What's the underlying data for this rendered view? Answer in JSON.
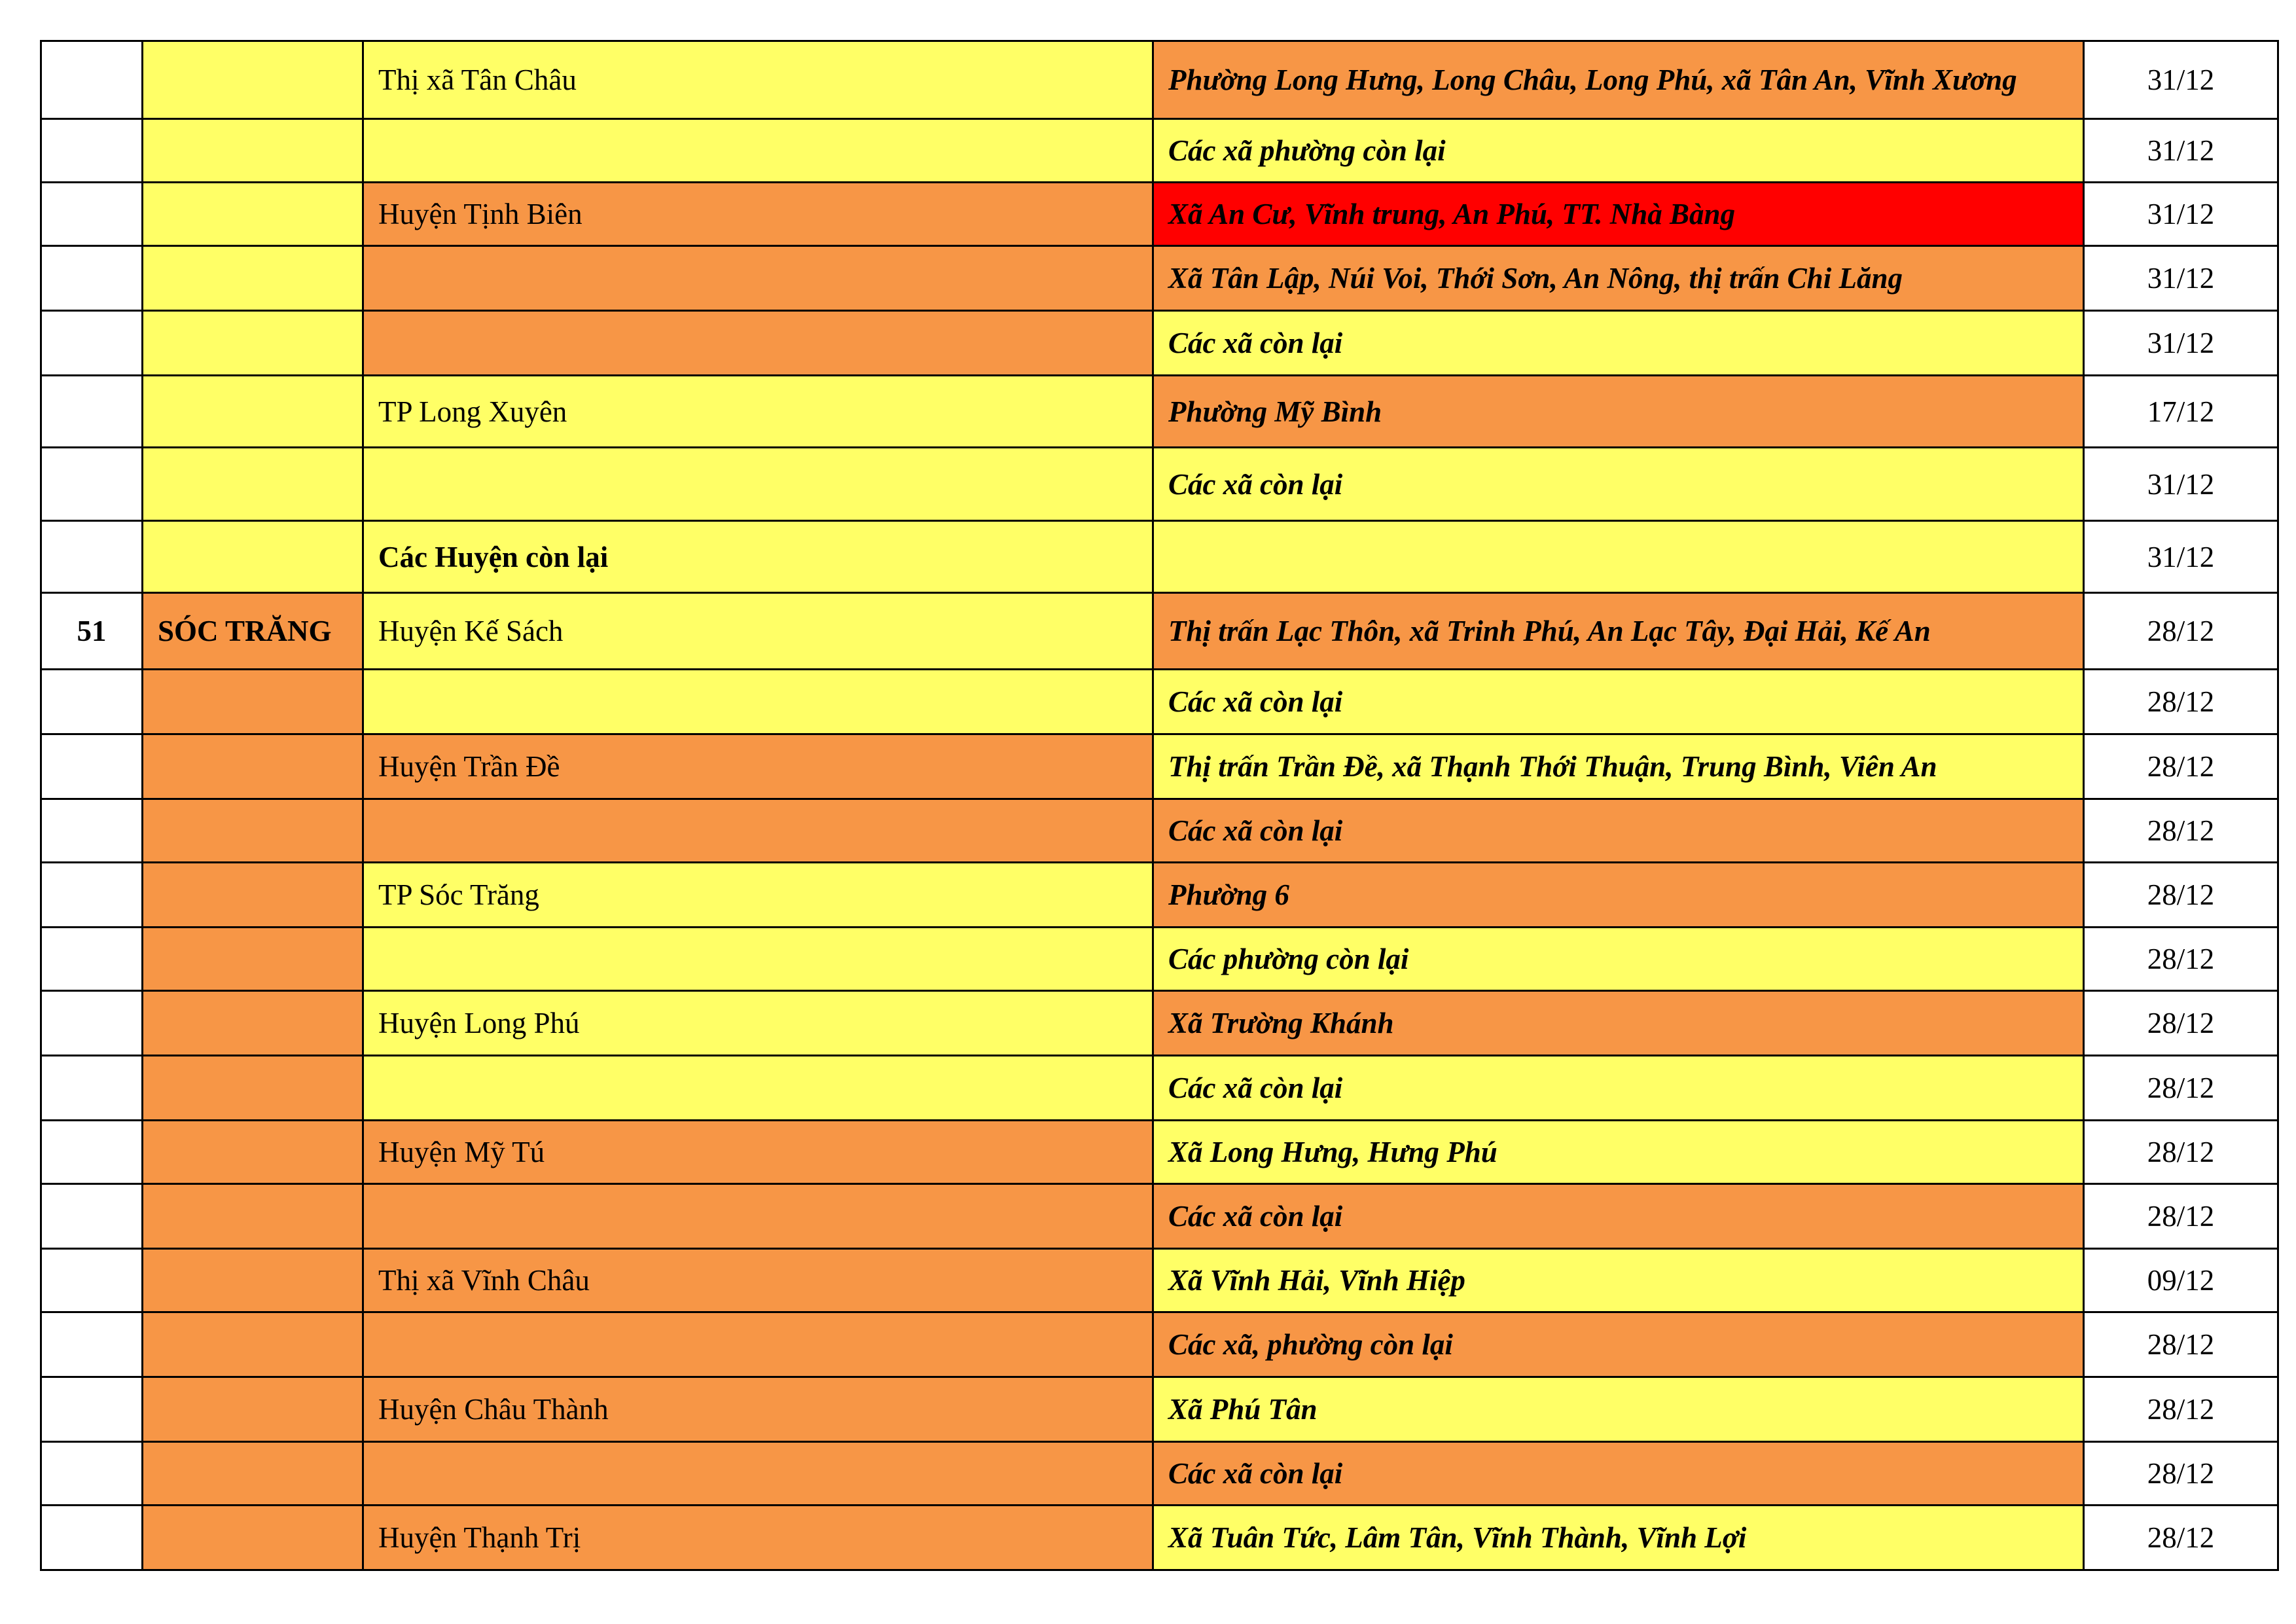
{
  "colors": {
    "yellow": "#FFFF66",
    "orange": "#F79646",
    "red": "#FF0000",
    "white": "#FFFFFF"
  },
  "rows": [
    {
      "stt": "",
      "province": "",
      "pc": "yellow",
      "district": "Thị xã Tân Châu",
      "dc": "yellow",
      "area": "Phường Long Hưng, Long Châu, Long Phú, xã Tân An, Vĩnh Xương",
      "ac": "orange",
      "date": "31/12",
      "h": 119
    },
    {
      "stt": "",
      "province": "",
      "pc": "yellow",
      "district": "",
      "dc": "yellow",
      "area": "Các xã phường còn lại",
      "ac": "yellow",
      "date": "31/12",
      "h": 97
    },
    {
      "stt": "",
      "province": "",
      "pc": "yellow",
      "district": "Huyện Tịnh Biên",
      "dc": "orange",
      "area": "Xã An Cư, Vĩnh trung, An Phú, TT. Nhà Bàng",
      "ac": "red",
      "date": "31/12",
      "h": 97
    },
    {
      "stt": "",
      "province": "",
      "pc": "yellow",
      "district": "",
      "dc": "orange",
      "area": "Xã Tân Lập, Núi Voi, Thới Sơn, An Nông, thị trấn Chi Lăng",
      "ac": "orange",
      "date": "31/12",
      "h": 99
    },
    {
      "stt": "",
      "province": "",
      "pc": "yellow",
      "district": "",
      "dc": "orange",
      "area": "Các xã còn lại",
      "ac": "yellow",
      "date": "31/12",
      "h": 99
    },
    {
      "stt": "",
      "province": "",
      "pc": "yellow",
      "district": "TP Long Xuyên",
      "dc": "yellow",
      "area": "Phường Mỹ Bình",
      "ac": "orange",
      "date": "17/12",
      "h": 110
    },
    {
      "stt": "",
      "province": "",
      "pc": "yellow",
      "district": "",
      "dc": "yellow",
      "area": "Các xã còn lại",
      "ac": "yellow",
      "date": "31/12",
      "h": 112
    },
    {
      "stt": "",
      "province": "",
      "pc": "yellow",
      "district": "Các Huyện còn lại",
      "district_bold": true,
      "dc": "yellow",
      "area": "",
      "ac": "yellow",
      "date": "31/12",
      "h": 110
    },
    {
      "stt": "51",
      "province": "SÓC TRĂNG",
      "pc": "orange",
      "district": "Huyện Kế Sách",
      "dc": "yellow",
      "area": "Thị trấn Lạc Thôn, xã Trinh Phú, An Lạc Tây, Đại Hải, Kế An",
      "ac": "orange",
      "date": "28/12",
      "h": 117
    },
    {
      "stt": "",
      "province": "",
      "pc": "orange",
      "district": "",
      "dc": "yellow",
      "area": "Các xã còn lại",
      "ac": "yellow",
      "date": "28/12",
      "h": 99
    },
    {
      "stt": "",
      "province": "",
      "pc": "orange",
      "district": "Huyện Trần Đề",
      "dc": "orange",
      "area": "Thị trấn Trần Đề, xã Thạnh Thới Thuận, Trung Bình, Viên An",
      "ac": "yellow",
      "date": "28/12",
      "h": 99
    },
    {
      "stt": "",
      "province": "",
      "pc": "orange",
      "district": "",
      "dc": "orange",
      "area": "Các xã còn lại",
      "ac": "orange",
      "date": "28/12",
      "h": 97
    },
    {
      "stt": "",
      "province": "",
      "pc": "orange",
      "district": "TP Sóc Trăng",
      "dc": "yellow",
      "area": "Phường 6",
      "ac": "orange",
      "date": "28/12",
      "h": 99
    },
    {
      "stt": "",
      "province": "",
      "pc": "orange",
      "district": "",
      "dc": "yellow",
      "area": "Các phường còn lại",
      "ac": "yellow",
      "date": "28/12",
      "h": 97
    },
    {
      "stt": "",
      "province": "",
      "pc": "orange",
      "district": "Huyện Long Phú",
      "dc": "yellow",
      "area": "Xã Trường Khánh",
      "ac": "orange",
      "date": "28/12",
      "h": 99
    },
    {
      "stt": "",
      "province": "",
      "pc": "orange",
      "district": "",
      "dc": "yellow",
      "area": "Các xã còn lại",
      "ac": "yellow",
      "date": "28/12",
      "h": 99
    },
    {
      "stt": "",
      "province": "",
      "pc": "orange",
      "district": "Huyện Mỹ Tú",
      "dc": "orange",
      "area": "Xã Long Hưng, Hưng Phú",
      "ac": "yellow",
      "date": "28/12",
      "h": 97
    },
    {
      "stt": "",
      "province": "",
      "pc": "orange",
      "district": "",
      "dc": "orange",
      "area": "Các xã còn lại",
      "ac": "orange",
      "date": "28/12",
      "h": 99
    },
    {
      "stt": "",
      "province": "",
      "pc": "orange",
      "district": "Thị xã Vĩnh Châu",
      "dc": "orange",
      "area": "Xã Vĩnh Hải, Vĩnh Hiệp",
      "ac": "yellow",
      "date": "09/12",
      "h": 97
    },
    {
      "stt": "",
      "province": "",
      "pc": "orange",
      "district": "",
      "dc": "orange",
      "area": "Các xã, phường còn lại",
      "ac": "orange",
      "date": "28/12",
      "h": 99
    },
    {
      "stt": "",
      "province": "",
      "pc": "orange",
      "district": "Huyện Châu Thành",
      "dc": "orange",
      "area": "Xã Phú Tân",
      "ac": "yellow",
      "date": "28/12",
      "h": 99
    },
    {
      "stt": "",
      "province": "",
      "pc": "orange",
      "district": "",
      "dc": "orange",
      "area": "Các xã còn lại",
      "ac": "orange",
      "date": "28/12",
      "h": 97
    },
    {
      "stt": "",
      "province": "",
      "pc": "orange",
      "district": "Huyện Thạnh Trị",
      "dc": "orange",
      "area": "Xã Tuân Tức, Lâm Tân, Vĩnh Thành, Vĩnh Lợi",
      "ac": "yellow",
      "date": "28/12",
      "h": 99
    }
  ]
}
